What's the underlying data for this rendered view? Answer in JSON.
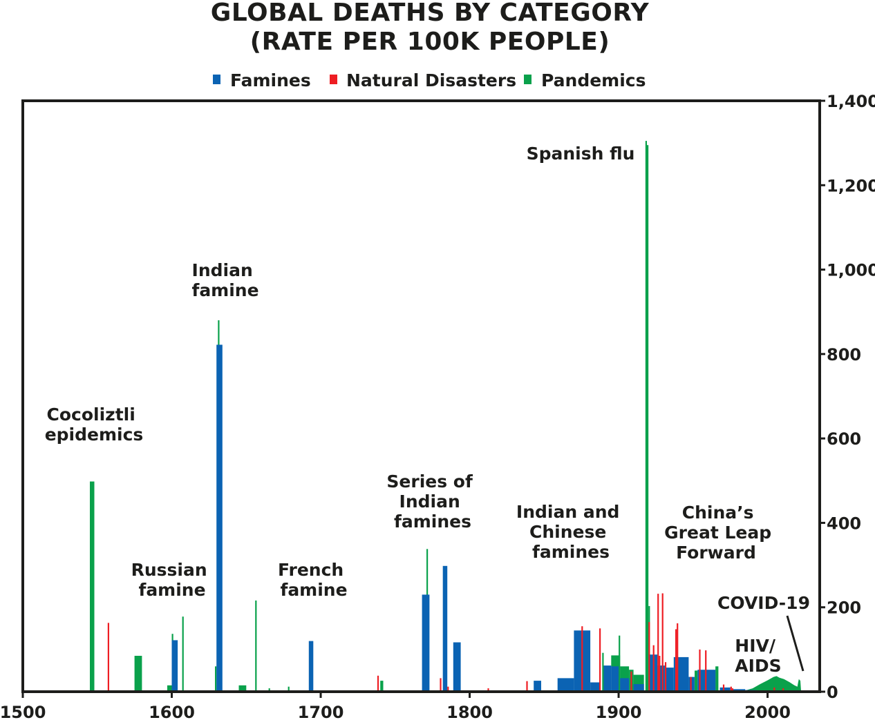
{
  "chart_data": {
    "type": "bar",
    "title_lines": [
      "GLOBAL DEATHS BY CATEGORY",
      "(RATE PER 100K PEOPLE)"
    ],
    "xlabel": "",
    "ylabel": "",
    "xlim": [
      1500,
      2035
    ],
    "ylim": [
      0,
      1400
    ],
    "x_ticks": [
      1500,
      1600,
      1700,
      1800,
      1900,
      2000
    ],
    "y_ticks": [
      0,
      200,
      400,
      600,
      800,
      1000,
      1200,
      1400
    ],
    "y_tick_labels": [
      "0",
      "200",
      "400",
      "600",
      "800",
      "1,000",
      "1,200",
      "1,400"
    ],
    "y_axis_side": "right",
    "grid": false,
    "legend_position": "top",
    "colors": {
      "famines": "#0b63b3",
      "natural": "#ee1d23",
      "pandemics": "#0aa14b"
    },
    "series": [
      {
        "name": "Famines",
        "color": "#0b63b3"
      },
      {
        "name": "Natural Disasters",
        "color": "#ee1d23"
      },
      {
        "name": "Pandemics",
        "color": "#0aa14b"
      }
    ],
    "bars": [
      {
        "start": 1545,
        "end": 1548,
        "category": "pandemics",
        "value": 498
      },
      {
        "start": 1557,
        "end": 1558,
        "category": "natural",
        "value": 163
      },
      {
        "start": 1575,
        "end": 1580,
        "category": "pandemics",
        "value": 85
      },
      {
        "start": 1597,
        "end": 1602,
        "category": "pandemics",
        "value": 15
      },
      {
        "start": 1600,
        "end": 1604,
        "category": "famines",
        "value": 122
      },
      {
        "start": 1600,
        "end": 1601,
        "category": "pandemics",
        "value": 137
      },
      {
        "start": 1607,
        "end": 1608,
        "category": "pandemics",
        "value": 178
      },
      {
        "start": 1630,
        "end": 1634,
        "category": "famines",
        "value": 822
      },
      {
        "start": 1631,
        "end": 1632,
        "category": "pandemics",
        "value": 880
      },
      {
        "start": 1629,
        "end": 1630,
        "category": "pandemics",
        "value": 60
      },
      {
        "start": 1645,
        "end": 1650,
        "category": "pandemics",
        "value": 15
      },
      {
        "start": 1656,
        "end": 1657,
        "category": "pandemics",
        "value": 216
      },
      {
        "start": 1665,
        "end": 1666,
        "category": "pandemics",
        "value": 8
      },
      {
        "start": 1678,
        "end": 1679,
        "category": "pandemics",
        "value": 12
      },
      {
        "start": 1692,
        "end": 1695,
        "category": "famines",
        "value": 120
      },
      {
        "start": 1738,
        "end": 1739,
        "category": "natural",
        "value": 38
      },
      {
        "start": 1740,
        "end": 1742,
        "category": "pandemics",
        "value": 26
      },
      {
        "start": 1768,
        "end": 1773,
        "category": "famines",
        "value": 230
      },
      {
        "start": 1771,
        "end": 1772,
        "category": "pandemics",
        "value": 338
      },
      {
        "start": 1780,
        "end": 1781,
        "category": "natural",
        "value": 32
      },
      {
        "start": 1782,
        "end": 1785,
        "category": "famines",
        "value": 298
      },
      {
        "start": 1785,
        "end": 1786,
        "category": "natural",
        "value": 12
      },
      {
        "start": 1789,
        "end": 1794,
        "category": "famines",
        "value": 117
      },
      {
        "start": 1812,
        "end": 1813,
        "category": "natural",
        "value": 8
      },
      {
        "start": 1838,
        "end": 1839,
        "category": "natural",
        "value": 25
      },
      {
        "start": 1843,
        "end": 1848,
        "category": "famines",
        "value": 26
      },
      {
        "start": 1859,
        "end": 1870,
        "category": "famines",
        "value": 32
      },
      {
        "start": 1870,
        "end": 1881,
        "category": "famines",
        "value": 145
      },
      {
        "start": 1875,
        "end": 1876,
        "category": "natural",
        "value": 155
      },
      {
        "start": 1881,
        "end": 1887,
        "category": "famines",
        "value": 22
      },
      {
        "start": 1887,
        "end": 1888,
        "category": "natural",
        "value": 150
      },
      {
        "start": 1889,
        "end": 1890,
        "category": "pandemics",
        "value": 92
      },
      {
        "start": 1890,
        "end": 1895,
        "category": "famines",
        "value": 62
      },
      {
        "start": 1895,
        "end": 1901,
        "category": "pandemics",
        "value": 86
      },
      {
        "start": 1895,
        "end": 1900,
        "category": "famines",
        "value": 60
      },
      {
        "start": 1900,
        "end": 1901,
        "category": "pandemics",
        "value": 133
      },
      {
        "start": 1901,
        "end": 1907,
        "category": "pandemics",
        "value": 60
      },
      {
        "start": 1901,
        "end": 1907,
        "category": "famines",
        "value": 32
      },
      {
        "start": 1907,
        "end": 1910,
        "category": "pandemics",
        "value": 52
      },
      {
        "start": 1908,
        "end": 1909,
        "category": "natural",
        "value": 48
      },
      {
        "start": 1910,
        "end": 1917,
        "category": "pandemics",
        "value": 40
      },
      {
        "start": 1910,
        "end": 1917,
        "category": "famines",
        "value": 18
      },
      {
        "start": 1918,
        "end": 1919,
        "category": "pandemics",
        "value": 1305
      },
      {
        "start": 1919,
        "end": 1920,
        "category": "pandemics",
        "value": 1295
      },
      {
        "start": 1920,
        "end": 1921,
        "category": "pandemics",
        "value": 203
      },
      {
        "start": 1920,
        "end": 1926,
        "category": "famines",
        "value": 88
      },
      {
        "start": 1920,
        "end": 1921,
        "category": "natural",
        "value": 165
      },
      {
        "start": 1923,
        "end": 1924,
        "category": "natural",
        "value": 110
      },
      {
        "start": 1926,
        "end": 1927,
        "category": "natural",
        "value": 232
      },
      {
        "start": 1926,
        "end": 1931,
        "category": "famines",
        "value": 62
      },
      {
        "start": 1927,
        "end": 1928,
        "category": "natural",
        "value": 85
      },
      {
        "start": 1929,
        "end": 1930,
        "category": "natural",
        "value": 233
      },
      {
        "start": 1931,
        "end": 1932,
        "category": "natural",
        "value": 70
      },
      {
        "start": 1931,
        "end": 1937,
        "category": "famines",
        "value": 57
      },
      {
        "start": 1938,
        "end": 1939,
        "category": "natural",
        "value": 148
      },
      {
        "start": 1939,
        "end": 1940,
        "category": "natural",
        "value": 162
      },
      {
        "start": 1937,
        "end": 1947,
        "category": "famines",
        "value": 82
      },
      {
        "start": 1947,
        "end": 1951,
        "category": "famines",
        "value": 35
      },
      {
        "start": 1948,
        "end": 1949,
        "category": "natural",
        "value": 35
      },
      {
        "start": 1951,
        "end": 1953,
        "category": "pandemics",
        "value": 50
      },
      {
        "start": 1954,
        "end": 1955,
        "category": "natural",
        "value": 100
      },
      {
        "start": 1953,
        "end": 1965,
        "category": "famines",
        "value": 52
      },
      {
        "start": 1958,
        "end": 1959,
        "category": "natural",
        "value": 98
      },
      {
        "start": 1965,
        "end": 1967,
        "category": "pandemics",
        "value": 60
      },
      {
        "start": 1970,
        "end": 1971,
        "category": "natural",
        "value": 17
      },
      {
        "start": 1975,
        "end": 1976,
        "category": "natural",
        "value": 12
      },
      {
        "start": 1968,
        "end": 1975,
        "category": "famines",
        "value": 10
      },
      {
        "start": 1976,
        "end": 1985,
        "category": "famines",
        "value": 6
      },
      {
        "start": 1976,
        "end": 1977,
        "category": "natural",
        "value": 8
      },
      {
        "start": 1985,
        "end": 1992,
        "category": "famines",
        "value": 4
      },
      {
        "start": 2004,
        "end": 2005,
        "category": "natural",
        "value": 10
      },
      {
        "start": 2010,
        "end": 2011,
        "category": "natural",
        "value": 8
      }
    ],
    "hiv_area": {
      "category": "pandemics",
      "points": [
        [
          1981,
          0
        ],
        [
          1985,
          3
        ],
        [
          1990,
          8
        ],
        [
          1995,
          18
        ],
        [
          2000,
          27
        ],
        [
          2004,
          35
        ],
        [
          2006,
          37
        ],
        [
          2008,
          33
        ],
        [
          2011,
          30
        ],
        [
          2015,
          22
        ],
        [
          2018,
          15
        ],
        [
          2020,
          12
        ],
        [
          2020.5,
          22
        ],
        [
          2021,
          30
        ],
        [
          2022,
          26
        ],
        [
          2022.5,
          0
        ]
      ]
    },
    "annotations": [
      {
        "id": "cocoliztli",
        "lines": [
          "Cocoliztli",
          "epidemics"
        ]
      },
      {
        "id": "indian",
        "lines": [
          "Indian",
          "famine"
        ]
      },
      {
        "id": "russian",
        "lines": [
          "Russian",
          "famine"
        ]
      },
      {
        "id": "french",
        "lines": [
          "French",
          "famine"
        ]
      },
      {
        "id": "series-indian",
        "lines": [
          "Series of",
          "Indian",
          "famines"
        ]
      },
      {
        "id": "indian-chinese",
        "lines": [
          "Indian and",
          "Chinese",
          "famines"
        ]
      },
      {
        "id": "spanish-flu",
        "lines": [
          "Spanish flu"
        ]
      },
      {
        "id": "china-glf",
        "lines": [
          "China’s",
          "Great Leap",
          "Forward"
        ]
      },
      {
        "id": "covid",
        "lines": [
          "COVID-19"
        ]
      },
      {
        "id": "hiv",
        "lines": [
          "HIV/",
          "AIDS"
        ]
      }
    ]
  }
}
